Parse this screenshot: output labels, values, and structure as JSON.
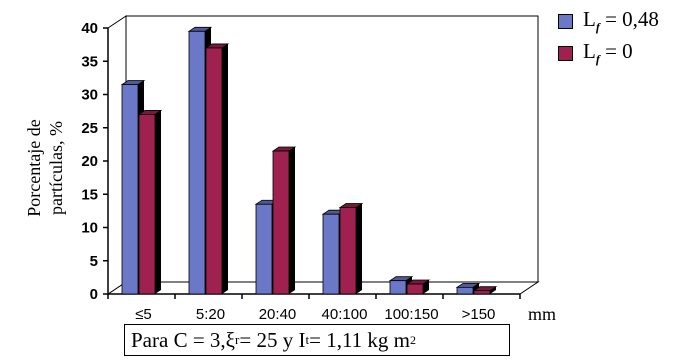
{
  "chart_data": {
    "type": "bar",
    "ylabel_line1": "Porcentaje de",
    "ylabel_line2": "partículas, %",
    "xunit": "mm",
    "categories": [
      "≤5",
      "5:20",
      "20:40",
      "40:100",
      "100:150",
      ">150"
    ],
    "ylim": [
      0,
      40
    ],
    "yticks": [
      0,
      5,
      10,
      15,
      20,
      25,
      30,
      35,
      40
    ],
    "series": [
      {
        "name_main": "L",
        "name_sub": "f",
        "name_rest": " = 0,48",
        "color": "#6b78c8",
        "values": [
          31.5,
          39.5,
          13.5,
          12,
          2,
          1
        ]
      },
      {
        "name_main": "L",
        "name_sub": "f",
        "name_rest": " = 0",
        "color": "#9e2150",
        "values": [
          27,
          37,
          21.5,
          13,
          1.5,
          0.5
        ]
      }
    ],
    "caption": {
      "a": "Para C = 3, ",
      "xi": "ξ",
      "xi_sub": "r",
      "b": " = 25 y I",
      "i_sub": "t",
      "c": " = 1,11 kg m",
      "sup": "2"
    }
  }
}
